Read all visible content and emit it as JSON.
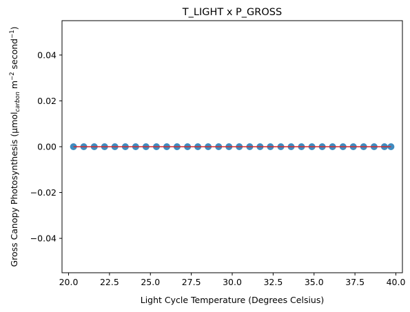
{
  "chart_data": {
    "type": "scatter",
    "title": "T_LIGHT x P_GROSS",
    "xlabel": "Light Cycle Temperature (Degrees Celsius)",
    "ylabel": {
      "prefix": "Gross Canopy Photosynthesis (μmol",
      "subscript": "carbon",
      "middle": " m",
      "sup1": "−2",
      "middle2": " second",
      "sup2": "−1",
      "suffix": ")"
    },
    "xlim": [
      19.6,
      40.4
    ],
    "ylim": [
      -0.055,
      0.055
    ],
    "x_ticks": [
      20.0,
      22.5,
      25.0,
      27.5,
      30.0,
      32.5,
      35.0,
      37.5,
      40.0
    ],
    "x_tick_labels": [
      "20.0",
      "22.5",
      "25.0",
      "27.5",
      "30.0",
      "32.5",
      "35.0",
      "37.5",
      "40.0"
    ],
    "y_ticks": [
      -0.04,
      -0.02,
      0.0,
      0.02,
      0.04
    ],
    "y_tick_labels": [
      "−0.04",
      "−0.02",
      "0.00",
      "0.02",
      "0.04"
    ],
    "grid": false,
    "series": [
      {
        "kind": "points",
        "color": "#1f77b4",
        "x": [
          20.3,
          20.93,
          21.57,
          22.2,
          22.83,
          23.47,
          24.1,
          24.73,
          25.37,
          26.0,
          26.63,
          27.27,
          27.9,
          28.53,
          29.17,
          29.8,
          30.43,
          31.07,
          31.7,
          32.33,
          32.97,
          33.6,
          34.23,
          34.87,
          35.5,
          36.13,
          36.77,
          37.4,
          38.03,
          38.67,
          39.3,
          39.7
        ],
        "y": [
          0,
          0,
          0,
          0,
          0,
          0,
          0,
          0,
          0,
          0,
          0,
          0,
          0,
          0,
          0,
          0,
          0,
          0,
          0,
          0,
          0,
          0,
          0,
          0,
          0,
          0,
          0,
          0,
          0,
          0,
          0,
          0
        ]
      },
      {
        "kind": "fit-line",
        "color": "#d62728",
        "x": [
          20.3,
          39.7
        ],
        "y": [
          0,
          0
        ]
      }
    ]
  }
}
